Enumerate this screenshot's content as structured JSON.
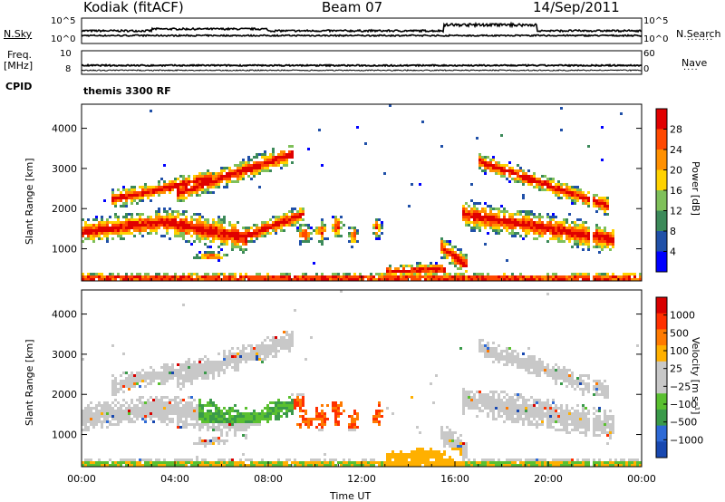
{
  "header": {
    "station": "Kodiak (fitACF)",
    "beam": "Beam 07",
    "date": "14/Sep/2011"
  },
  "side_labels": {
    "nsky": "N.Sky",
    "nsearch": "N.Search",
    "freq": "Freq.",
    "freq_unit": "[MHz]",
    "nave": "Nave",
    "cpid": "CPID",
    "cpid_value": "themis 3300 RF"
  },
  "colors": {
    "power_scale": [
      "#0000ff",
      "#2050a8",
      "#3c8a5a",
      "#7fc05a",
      "#ffd200",
      "#ff9000",
      "#ff4800",
      "#e00000"
    ],
    "velocity_scale": [
      "#1848b0",
      "#2e6ad6",
      "#3a9a4a",
      "#5ac030",
      "#c8c8c8",
      "#c8c8c8",
      "#ffb000",
      "#ff7a00",
      "#ff3000",
      "#d80000"
    ]
  },
  "chart_data": [
    {
      "type": "line",
      "panel": "noise",
      "left_ticks": [
        "10^5",
        "10^0"
      ],
      "right_ticks": [
        "10^5",
        "10^0"
      ]
    },
    {
      "type": "line",
      "panel": "frequency",
      "left_ticks": [
        "10",
        "8"
      ],
      "right_ticks": [
        "60",
        "0"
      ]
    },
    {
      "type": "heatmap",
      "panel": "power",
      "ylabel": "Slant Range [km]",
      "yticks": [
        1000,
        2000,
        3000,
        4000
      ],
      "ylim": [
        200,
        4600
      ],
      "xlim": [
        0,
        24
      ],
      "colorbar_label": "Power [dB]",
      "colorbar_ticks": [
        "28",
        "24",
        "20",
        "16",
        "12",
        "8",
        "4"
      ]
    },
    {
      "type": "heatmap",
      "panel": "velocity",
      "ylabel": "Slant Range [km]",
      "yticks": [
        1000,
        2000,
        3000,
        4000
      ],
      "ylim": [
        200,
        4600
      ],
      "xlim": [
        0,
        24
      ],
      "colorbar_label": "Velocity [m s⁻¹]",
      "colorbar_ticks": [
        "1000",
        "500",
        "100",
        "25",
        "−25",
        "−100",
        "−500",
        "−1000"
      ]
    }
  ],
  "time_axis": {
    "ticks": [
      "00:00",
      "04:00",
      "08:00",
      "12:00",
      "16:00",
      "20:00",
      "00:00"
    ],
    "label": "Time UT"
  }
}
